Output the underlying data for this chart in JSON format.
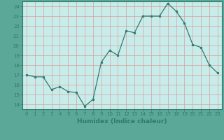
{
  "x": [
    0,
    1,
    2,
    3,
    4,
    5,
    6,
    7,
    8,
    9,
    10,
    11,
    12,
    13,
    14,
    15,
    16,
    17,
    18,
    19,
    20,
    21,
    22,
    23
  ],
  "y": [
    17.0,
    16.8,
    16.8,
    15.5,
    15.8,
    15.3,
    15.2,
    13.8,
    14.5,
    18.3,
    19.5,
    19.0,
    21.5,
    21.3,
    23.0,
    23.0,
    23.0,
    24.3,
    23.5,
    22.3,
    20.1,
    19.8,
    18.0,
    17.2
  ],
  "ylim": [
    13.5,
    24.5
  ],
  "xlim": [
    -0.5,
    23.5
  ],
  "yticks": [
    14,
    15,
    16,
    17,
    18,
    19,
    20,
    21,
    22,
    23,
    24
  ],
  "xticks": [
    0,
    1,
    2,
    3,
    4,
    5,
    6,
    7,
    8,
    9,
    10,
    11,
    12,
    13,
    14,
    15,
    16,
    17,
    18,
    19,
    20,
    21,
    22,
    23
  ],
  "xlabel": "Humidex (Indice chaleur)",
  "line_color": "#2d7a6e",
  "marker_color": "#2d7a6e",
  "plot_bg_color": "#c8ecea",
  "fig_bg_color": "#5ba898",
  "grid_color": "#d4a0a0",
  "axis_color": "#2d7a6e",
  "tick_color": "#2d7a6e",
  "label_color": "#2d7a6e"
}
